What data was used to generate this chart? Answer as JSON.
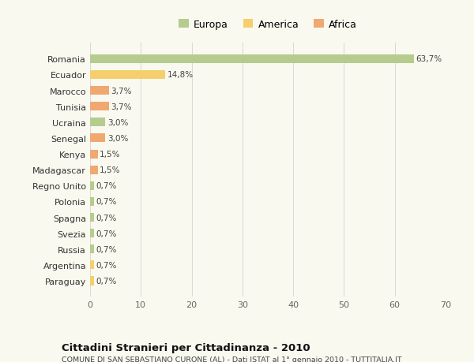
{
  "categories": [
    "Romania",
    "Ecuador",
    "Marocco",
    "Tunisia",
    "Ucraina",
    "Senegal",
    "Kenya",
    "Madagascar",
    "Regno Unito",
    "Polonia",
    "Spagna",
    "Svezia",
    "Russia",
    "Argentina",
    "Paraguay"
  ],
  "values": [
    63.7,
    14.8,
    3.7,
    3.7,
    3.0,
    3.0,
    1.5,
    1.5,
    0.7,
    0.7,
    0.7,
    0.7,
    0.7,
    0.7,
    0.7
  ],
  "labels": [
    "63,7%",
    "14,8%",
    "3,7%",
    "3,7%",
    "3,0%",
    "3,0%",
    "1,5%",
    "1,5%",
    "0,7%",
    "0,7%",
    "0,7%",
    "0,7%",
    "0,7%",
    "0,7%",
    "0,7%"
  ],
  "continent": [
    "Europa",
    "America",
    "Africa",
    "Africa",
    "Europa",
    "Africa",
    "Africa",
    "Africa",
    "Europa",
    "Europa",
    "Europa",
    "Europa",
    "Europa",
    "America",
    "America"
  ],
  "colors": {
    "Europa": "#b5cc8e",
    "America": "#f5ce6e",
    "Africa": "#f0a870"
  },
  "legend": [
    "Europa",
    "America",
    "Africa"
  ],
  "legend_colors": [
    "#b5cc8e",
    "#f5ce6e",
    "#f0a870"
  ],
  "title": "Cittadini Stranieri per Cittadinanza - 2010",
  "subtitle": "COMUNE DI SAN SEBASTIANO CURONE (AL) - Dati ISTAT al 1° gennaio 2010 - TUTTITALIA.IT",
  "xlim": [
    0,
    70
  ],
  "xticks": [
    0,
    10,
    20,
    30,
    40,
    50,
    60,
    70
  ],
  "background_color": "#f9f9f0",
  "grid_color": "#d8d8d8"
}
